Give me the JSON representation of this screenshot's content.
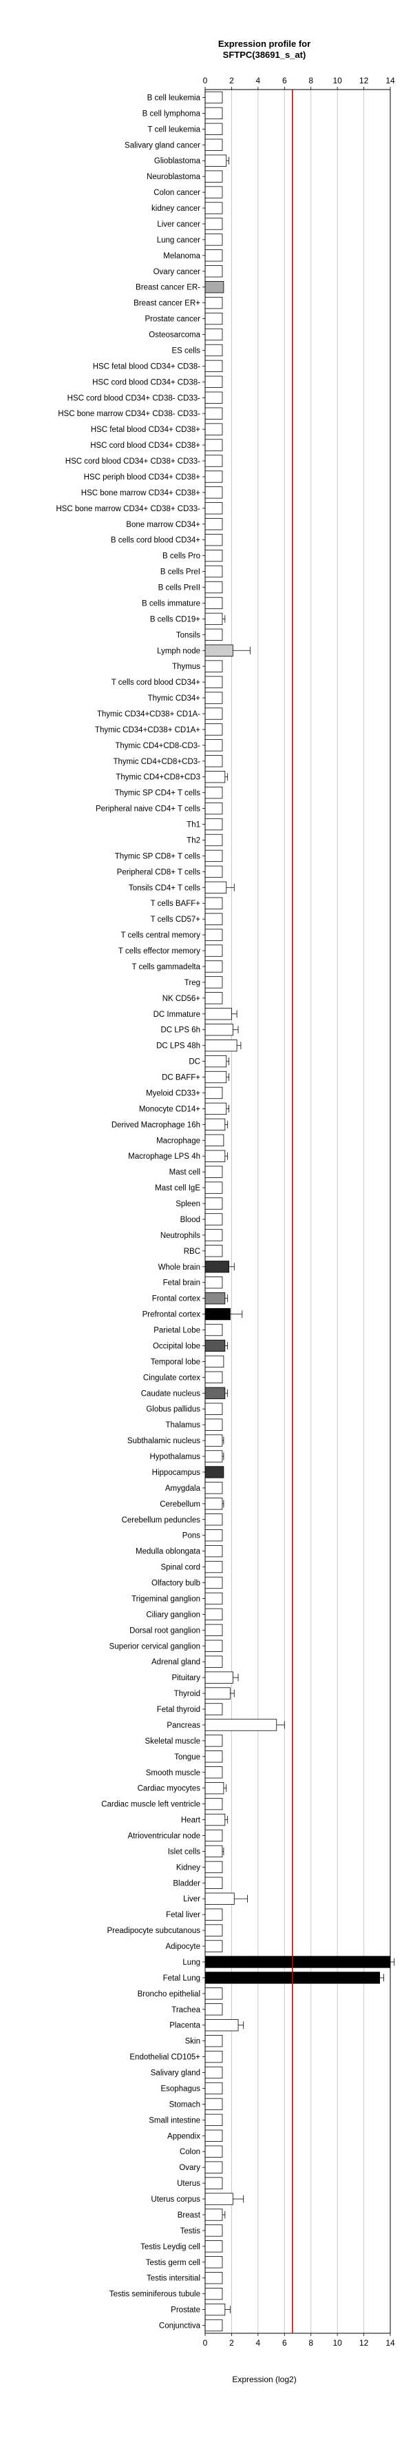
{
  "chart_data": {
    "type": "bar",
    "orientation": "horizontal",
    "title_line1": "Expression profile for",
    "title_line2": "SFTPC(38691_s_at)",
    "xlabel": "Expression (log2)",
    "xlim": [
      0,
      14
    ],
    "xticks": [
      "0",
      "2",
      "4",
      "6",
      "8",
      "10",
      "12",
      "14"
    ],
    "grid": "vertical",
    "threshold": 6.6,
    "threshold_color": "#cc0000",
    "categories": [
      "B cell leukemia",
      "B cell lymphoma",
      "T cell leukemia",
      "Salivary gland cancer",
      "Glioblastoma",
      "Neuroblastoma",
      "Colon cancer",
      "kidney cancer",
      "Liver cancer",
      "Lung cancer",
      "Melanoma",
      "Ovary cancer",
      "Breast cancer ER-",
      "Breast cancer ER+",
      "Prostate cancer",
      "Osteosarcoma",
      "ES cells",
      "HSC fetal blood CD34+ CD38-",
      "HSC cord blood CD34+ CD38-",
      "HSC cord blood CD34+ CD38- CD33-",
      "HSC bone marrow CD34+ CD38- CD33-",
      "HSC fetal blood CD34+ CD38+",
      "HSC cord blood CD34+ CD38+",
      "HSC cord blood CD34+ CD38+ CD33-",
      "HSC periph blood CD34+ CD38+",
      "HSC bone marrow CD34+ CD38+",
      "HSC bone marrow CD34+ CD38+ CD33-",
      "Bone marrow CD34+",
      "B cells cord blood CD34+",
      "B cells Pro",
      "B cells PreI",
      "B cells PreII",
      "B cells immature",
      "B cells CD19+",
      "Tonsils",
      "Lymph node",
      "Thymus",
      "T cells cord blood CD34+",
      "Thymic CD34+",
      "Thymic CD34+CD38+ CD1A-",
      "Thymic CD34+CD38+ CD1A+",
      "Thymic CD4+CD8-CD3-",
      "Thymic CD4+CD8+CD3-",
      "Thymic CD4+CD8+CD3",
      "Thymic SP CD4+ T cells",
      "Peripheral naive CD4+ T cells",
      "Th1",
      "Th2",
      "Thymic SP CD8+ T cells",
      "Peripheral CD8+ T cells",
      "Tonsils CD4+ T cells",
      "T cells BAFF+",
      "T cells CD57+",
      "T cells central memory",
      "T cells effector memory",
      "T cells gammadelta",
      "Treg",
      "NK CD56+",
      "DC Immature",
      "DC LPS 6h",
      "DC LPS 48h",
      "DC",
      "DC BAFF+",
      "Myeloid CD33+",
      "Monocyte CD14+",
      "Derived Macrophage 16h",
      "Macrophage",
      "Macrophage LPS 4h",
      "Mast cell",
      "Mast cell IgE",
      "Spleen",
      "Blood",
      "Neutrophils",
      "RBC",
      "Whole brain",
      "Fetal brain",
      "Frontal cortex",
      "Prefrontal cortex",
      "Parietal Lobe",
      "Occipital lobe",
      "Temporal lobe",
      "Cingulate cortex",
      "Caudate nucleus",
      "Globus pallidus",
      "Thalamus",
      "Subthalamic nucleus",
      "Hypothalamus",
      "Hippocampus",
      "Amygdala",
      "Cerebellum",
      "Cerebellum peduncles",
      "Pons",
      "Medulla oblongata",
      "Spinal cord",
      "Olfactory bulb",
      "Trigeminal ganglion",
      "Ciliary ganglion",
      "Dorsal root ganglion",
      "Superior cervical ganglion",
      "Adrenal gland",
      "Pituitary",
      "Thyroid",
      "Fetal thyroid",
      "Pancreas",
      "Skeletal muscle",
      "Tongue",
      "Smooth muscle",
      "Cardiac myocytes",
      "Cardiac muscle left ventricle",
      "Heart",
      "Atrioventricular node",
      "Islet cells",
      "Kidney",
      "Bladder",
      "Liver",
      "Fetal liver",
      "Preadipocyte subcutanous",
      "Adipocyte",
      "Lung",
      "Fetal Lung",
      "Broncho epithelial",
      "Trachea",
      "Placenta",
      "Skin",
      "Endothelial CD105+",
      "Salivary gland",
      "Esophagus",
      "Stomach",
      "Small intestine",
      "Appendix",
      "Colon",
      "Ovary",
      "Uterus",
      "Uterus corpus",
      "Breast",
      "Testis",
      "Testis Leydig cell",
      "Testis germ cell",
      "Testis intersitial",
      "Testis seminiferous tubule",
      "Prostate",
      "Conjunctiva"
    ],
    "values": [
      1.3,
      1.3,
      1.3,
      1.3,
      1.6,
      1.3,
      1.3,
      1.3,
      1.3,
      1.3,
      1.3,
      1.3,
      1.4,
      1.3,
      1.3,
      1.3,
      1.3,
      1.3,
      1.3,
      1.3,
      1.3,
      1.3,
      1.3,
      1.3,
      1.3,
      1.3,
      1.3,
      1.3,
      1.3,
      1.3,
      1.3,
      1.3,
      1.3,
      1.3,
      1.3,
      2.1,
      1.3,
      1.3,
      1.3,
      1.3,
      1.3,
      1.3,
      1.3,
      1.5,
      1.3,
      1.3,
      1.3,
      1.3,
      1.3,
      1.3,
      1.6,
      1.3,
      1.3,
      1.3,
      1.3,
      1.3,
      1.3,
      1.3,
      2.0,
      2.1,
      2.4,
      1.6,
      1.6,
      1.3,
      1.6,
      1.5,
      1.4,
      1.5,
      1.3,
      1.3,
      1.3,
      1.3,
      1.3,
      1.3,
      1.8,
      1.3,
      1.5,
      1.9,
      1.3,
      1.5,
      1.4,
      1.3,
      1.5,
      1.3,
      1.3,
      1.3,
      1.3,
      1.4,
      1.3,
      1.3,
      1.3,
      1.3,
      1.3,
      1.3,
      1.3,
      1.3,
      1.3,
      1.3,
      1.3,
      1.3,
      2.1,
      1.9,
      1.3,
      5.4,
      1.3,
      1.3,
      1.3,
      1.4,
      1.3,
      1.5,
      1.3,
      1.3,
      1.3,
      1.3,
      2.2,
      1.3,
      1.3,
      1.3,
      14.0,
      13.2,
      1.3,
      1.3,
      2.5,
      1.3,
      1.3,
      1.3,
      1.3,
      1.3,
      1.3,
      1.3,
      1.3,
      1.3,
      1.3,
      2.1,
      1.3,
      1.3,
      1.3,
      1.3,
      1.3,
      1.3,
      1.5,
      1.3
    ],
    "errors": [
      0,
      0,
      0,
      0,
      0.2,
      0,
      0,
      0,
      0,
      0,
      0,
      0,
      0,
      0,
      0,
      0,
      0,
      0,
      0,
      0,
      0,
      0,
      0,
      0,
      0,
      0,
      0,
      0,
      0,
      0,
      0,
      0,
      0,
      0.2,
      0,
      1.3,
      0,
      0,
      0,
      0,
      0,
      0,
      0,
      0.2,
      0,
      0,
      0,
      0,
      0,
      0,
      0.6,
      0,
      0,
      0,
      0,
      0,
      0,
      0,
      0.4,
      0.4,
      0.3,
      0.2,
      0.2,
      0,
      0.2,
      0.2,
      0,
      0.2,
      0,
      0,
      0,
      0,
      0,
      0,
      0.4,
      0,
      0.2,
      0.9,
      0,
      0.2,
      0,
      0,
      0.2,
      0,
      0,
      0.1,
      0.1,
      0,
      0,
      0.1,
      0,
      0,
      0,
      0,
      0,
      0,
      0,
      0,
      0,
      0,
      0.4,
      0.3,
      0,
      0.6,
      0,
      0,
      0,
      0.2,
      0,
      0.2,
      0,
      0.1,
      0,
      0,
      1.0,
      0,
      0,
      0,
      0.3,
      0.3,
      0,
      0,
      0.4,
      0,
      0,
      0,
      0,
      0,
      0,
      0,
      0,
      0,
      0,
      0.8,
      0.2,
      0,
      0,
      0,
      0,
      0,
      0.4,
      0
    ],
    "fills": [
      "#ffffff",
      "#ffffff",
      "#ffffff",
      "#ffffff",
      "#ffffff",
      "#ffffff",
      "#ffffff",
      "#ffffff",
      "#ffffff",
      "#ffffff",
      "#ffffff",
      "#ffffff",
      "#aaaaaa",
      "#ffffff",
      "#ffffff",
      "#ffffff",
      "#ffffff",
      "#ffffff",
      "#ffffff",
      "#ffffff",
      "#ffffff",
      "#ffffff",
      "#ffffff",
      "#ffffff",
      "#ffffff",
      "#ffffff",
      "#ffffff",
      "#ffffff",
      "#ffffff",
      "#ffffff",
      "#ffffff",
      "#ffffff",
      "#ffffff",
      "#ffffff",
      "#ffffff",
      "#cccccc",
      "#ffffff",
      "#ffffff",
      "#ffffff",
      "#ffffff",
      "#ffffff",
      "#ffffff",
      "#ffffff",
      "#ffffff",
      "#ffffff",
      "#ffffff",
      "#ffffff",
      "#ffffff",
      "#ffffff",
      "#ffffff",
      "#ffffff",
      "#ffffff",
      "#ffffff",
      "#ffffff",
      "#ffffff",
      "#ffffff",
      "#ffffff",
      "#ffffff",
      "#ffffff",
      "#ffffff",
      "#ffffff",
      "#ffffff",
      "#ffffff",
      "#ffffff",
      "#ffffff",
      "#ffffff",
      "#ffffff",
      "#ffffff",
      "#ffffff",
      "#ffffff",
      "#ffffff",
      "#ffffff",
      "#ffffff",
      "#ffffff",
      "#333333",
      "#ffffff",
      "#888888",
      "#000000",
      "#ffffff",
      "#555555",
      "#ffffff",
      "#ffffff",
      "#666666",
      "#ffffff",
      "#ffffff",
      "#ffffff",
      "#ffffff",
      "#333333",
      "#ffffff",
      "#ffffff",
      "#ffffff",
      "#ffffff",
      "#ffffff",
      "#ffffff",
      "#ffffff",
      "#ffffff",
      "#ffffff",
      "#ffffff",
      "#ffffff",
      "#ffffff",
      "#ffffff",
      "#ffffff",
      "#ffffff",
      "#ffffff",
      "#ffffff",
      "#ffffff",
      "#ffffff",
      "#ffffff",
      "#ffffff",
      "#ffffff",
      "#ffffff",
      "#ffffff",
      "#ffffff",
      "#ffffff",
      "#ffffff",
      "#ffffff",
      "#ffffff",
      "#ffffff",
      "#000000",
      "#000000",
      "#ffffff",
      "#ffffff",
      "#ffffff",
      "#ffffff",
      "#ffffff",
      "#ffffff",
      "#ffffff",
      "#ffffff",
      "#ffffff",
      "#ffffff",
      "#ffffff",
      "#ffffff",
      "#ffffff",
      "#ffffff",
      "#ffffff",
      "#ffffff",
      "#ffffff",
      "#ffffff",
      "#ffffff",
      "#ffffff",
      "#ffffff",
      "#ffffff"
    ]
  }
}
